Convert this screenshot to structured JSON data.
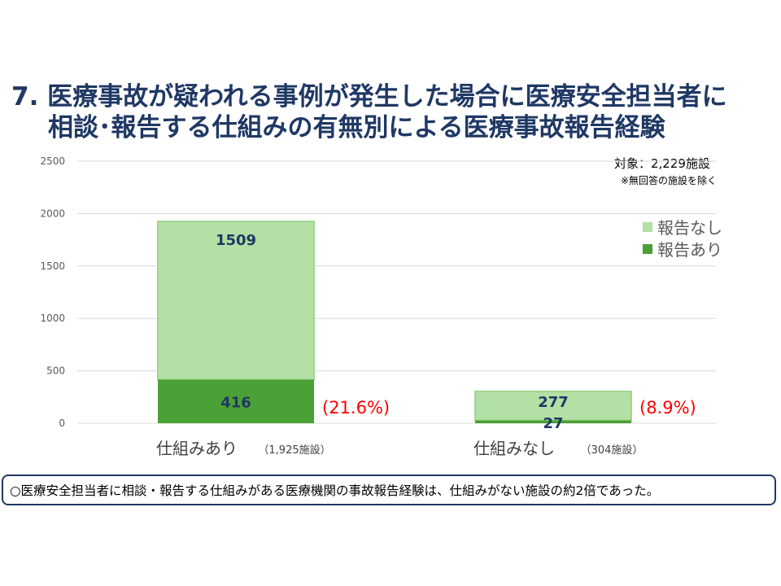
{
  "title": {
    "line1": "7. 医療事故が疑われる事例が発生した場合に医療安全担当者に",
    "line2": "相談･報告する仕組みの有無別による医療事故報告経験"
  },
  "target": "対象：2,229施設",
  "note": "※無回答の施設を除く",
  "summary": "○医療安全担当者に相談・報告する仕組みがある医療機関の事故報告経験は、仕組みがない施設の約2倍であった。",
  "colors": {
    "light": "#b3e0a4",
    "light_border": "#a3d491",
    "dark": "#4aa135",
    "label": "#1f3864",
    "pct": "#ff0000",
    "grid": "#d9d9d9",
    "axis_text": "#595959"
  },
  "chart_data": {
    "type": "bar",
    "stacked": true,
    "categories": [
      "仕組みあり",
      "仕組みなし"
    ],
    "category_notes": [
      "（1,925施設）",
      "（304施設）"
    ],
    "series": [
      {
        "name": "報告あり",
        "values": [
          416,
          27
        ],
        "color": "#4aa135"
      },
      {
        "name": "報告なし",
        "values": [
          1509,
          277
        ],
        "color": "#b3e0a4"
      }
    ],
    "percent_labels": [
      "(21.6%)",
      "(8.9%)"
    ],
    "ylim": [
      0,
      2500
    ],
    "yticks": [
      0,
      500,
      1000,
      1500,
      2000,
      2500
    ],
    "grid": true,
    "legend": "right",
    "legend_items": [
      "報告なし",
      "報告あり"
    ]
  }
}
